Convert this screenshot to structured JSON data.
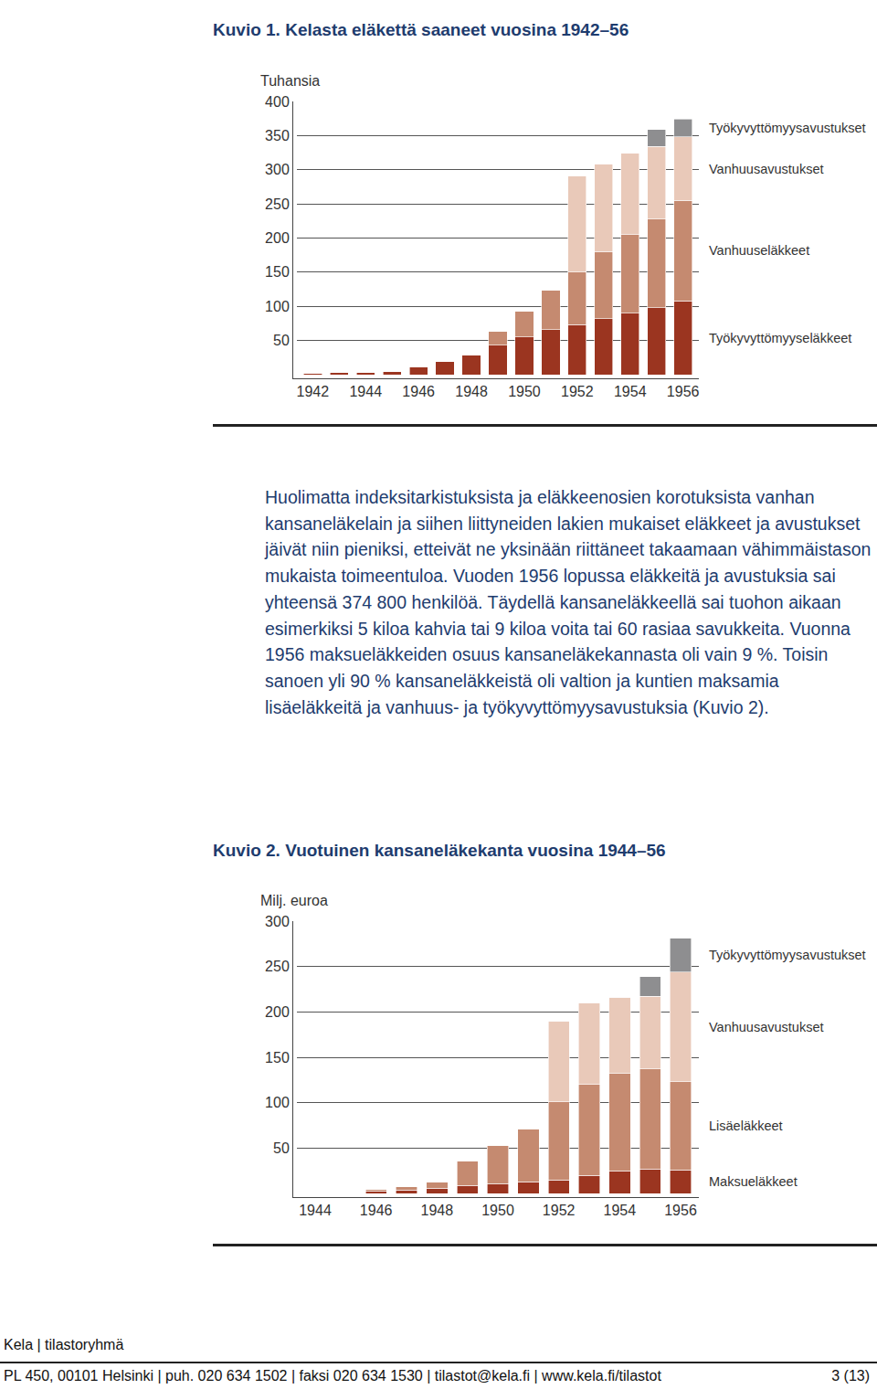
{
  "chart_data": [
    {
      "type": "bar",
      "title": "Kuvio 1. Kelasta eläkettä saaneet vuosina 1942–56",
      "ylabel": "Tuhansia",
      "stacked": true,
      "grid": true,
      "categories": [
        "1942",
        null,
        "1944",
        null,
        "1946",
        null,
        "1948",
        null,
        "1950",
        null,
        "1952",
        null,
        "1954",
        null,
        "1956"
      ],
      "series": [
        {
          "name": "Työkyvyttömyyseläkkeet",
          "color": "#9b3520",
          "values": [
            2,
            3,
            4,
            5,
            11,
            19,
            29,
            43,
            55,
            66,
            73,
            82,
            90,
            98,
            108
          ]
        },
        {
          "name": "Vanhuuseläkkeet",
          "color": "#c58a70",
          "values": [
            0,
            0,
            0,
            0,
            0,
            0,
            0,
            20,
            38,
            58,
            77,
            98,
            115,
            130,
            147
          ]
        },
        {
          "name": "Vanhuusavustukset",
          "color": "#e9c9b9",
          "values": [
            0,
            0,
            0,
            0,
            0,
            0,
            0,
            0,
            0,
            0,
            141,
            129,
            119,
            106,
            93
          ]
        },
        {
          "name": "Työkyvyttömyysavustukset",
          "color": "#8e8e90",
          "values": [
            0,
            0,
            0,
            0,
            0,
            0,
            0,
            0,
            0,
            0,
            0,
            0,
            0,
            25,
            26
          ]
        }
      ],
      "ylim": [
        0,
        400
      ],
      "yticks": [
        50,
        100,
        150,
        200,
        250,
        300,
        350,
        400
      ]
    },
    {
      "type": "bar",
      "title": "Kuvio 2. Vuotuinen kansaneläkekanta vuosina 1944–56",
      "ylabel": "Milj. euroa",
      "stacked": true,
      "grid": true,
      "categories": [
        "1944",
        null,
        "1946",
        null,
        "1948",
        null,
        "1950",
        null,
        "1952",
        null,
        "1954",
        null,
        "1956"
      ],
      "series": [
        {
          "name": "Maksueläkkeet",
          "color": "#9b3520",
          "values": [
            1,
            1,
            3,
            4,
            6,
            9,
            11,
            13,
            15,
            20,
            25,
            27,
            26
          ]
        },
        {
          "name": "Lisäeläkkeet",
          "color": "#c58a70",
          "values": [
            0,
            0,
            2,
            4,
            7,
            27,
            42,
            58,
            86,
            100,
            107,
            110,
            97
          ]
        },
        {
          "name": "Vanhuusavustukset",
          "color": "#e9c9b9",
          "values": [
            0,
            0,
            0,
            0,
            0,
            0,
            0,
            0,
            89,
            90,
            84,
            80,
            121
          ]
        },
        {
          "name": "Työkyvyttömyysavustukset",
          "color": "#8e8e90",
          "values": [
            0,
            0,
            0,
            0,
            0,
            0,
            0,
            0,
            0,
            0,
            0,
            22,
            37
          ]
        }
      ],
      "ylim": [
        0,
        300
      ],
      "yticks": [
        50,
        100,
        150,
        200,
        250,
        300
      ]
    }
  ],
  "body": {
    "paragraph": "Huolimatta indeksitarkistuksista ja eläkkeenosien korotuksista vanhan kansaneläkelain ja siihen liittyneiden lakien mukaiset eläkkeet ja avustukset jäivät niin pieniksi, etteivät ne yksinään riittäneet takaamaan vähimmäistason mukaista toimeentuloa. Vuoden 1956 lopussa eläkkeitä ja avustuksia sai yhteensä 374 800 henkilöä. Täydellä kansaneläkkeellä sai tuohon aikaan esimerkiksi 5 kiloa kahvia tai 9 kiloa voita tai 60 rasiaa savukkeita. Vuonna 1956 maksueläkkeiden osuus kansaneläkekannasta oli vain 9 %. Toisin sanoen yli 90 % kansaneläkkeistä oli valtion ja kuntien maksamia lisäeläkkeitä ja vanhuus- ja työkyvyttömyysavustuksia (Kuvio 2)."
  },
  "footer": {
    "organisation": "Kela | tilastoryhmä",
    "contact": "PL 450, 00101 Helsinki | puh. 020 634 1502 | faksi 020 634 1530 | tilastot@kela.fi | www.kela.fi/tilastot",
    "page": "3 (13)"
  }
}
